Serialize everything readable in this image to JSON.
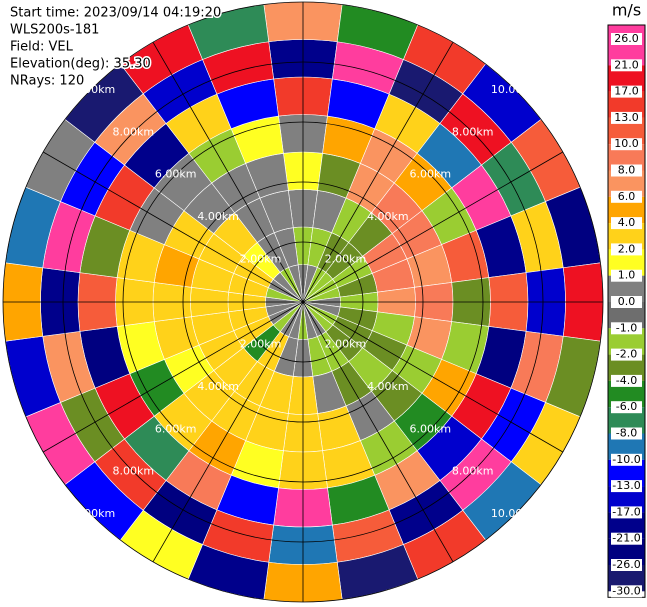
{
  "chart_data": {
    "type": "ppi",
    "annotations": [
      "Start time: 2023/09/14 04:19:20",
      "WLS200s-181",
      "Field: VEL",
      "Elevation(deg): 35.30",
      "NRays: 120"
    ],
    "azimuths": [
      0,
      15,
      30,
      45,
      60,
      75,
      90,
      105,
      120,
      135,
      150,
      165,
      180,
      195,
      210,
      225,
      240,
      255,
      270,
      285,
      300,
      315,
      330,
      345
    ],
    "ranges": [
      0,
      1.25,
      2.5,
      3.75,
      5,
      6.25,
      7.5,
      8.75,
      10
    ],
    "rlim": [
      0,
      10
    ],
    "values": [
      [
        0.5,
        -1.5,
        0.5,
        1.5,
        0.5,
        15,
        -20,
        8
      ],
      [
        0.5,
        -1.5,
        0.5,
        -3,
        5,
        -12,
        22,
        -5
      ],
      [
        -1.5,
        -3,
        -1.5,
        7,
        7,
        3,
        -27,
        14
      ],
      [
        -1.5,
        -3,
        -3,
        9,
        5,
        -9,
        19,
        -15
      ],
      [
        -1.5,
        -1.5,
        9,
        9,
        -1.5,
        25,
        -7,
        11
      ],
      [
        -1.5,
        -3,
        9,
        7,
        11,
        -18,
        4,
        -23
      ],
      [
        0.5,
        -1.5,
        7,
        9,
        -3,
        12,
        -14,
        20
      ],
      [
        0.5,
        -3,
        -1.5,
        7,
        -1.5,
        -25,
        9,
        -2
      ],
      [
        -1.5,
        -3,
        -3,
        -1.5,
        5,
        18,
        -11,
        3
      ],
      [
        -1.5,
        -3,
        -1.5,
        -3,
        -5,
        -16,
        24,
        -8
      ],
      [
        0.5,
        -1.5,
        -3,
        0.5,
        -1.5,
        7,
        -20,
        15
      ],
      [
        0.5,
        -1.5,
        0.5,
        3,
        3,
        -4,
        12,
        -28
      ],
      [
        -1.5,
        0.5,
        3,
        3,
        3,
        22,
        -9,
        6
      ],
      [
        0.5,
        0.5,
        3,
        3,
        1.5,
        -12,
        17,
        -19
      ],
      [
        0.5,
        3,
        3,
        3,
        5,
        9,
        -24,
        2
      ],
      [
        -1.5,
        -5,
        3,
        3,
        3,
        -7,
        14,
        -11
      ],
      [
        0.5,
        3,
        3,
        1.5,
        -5,
        19,
        -2,
        23
      ],
      [
        0.5,
        3,
        3,
        3,
        1.5,
        -22,
        7,
        -14
      ],
      [
        0.5,
        3,
        3,
        3,
        3,
        11,
        -17,
        5
      ],
      [
        -1.5,
        3,
        3,
        5,
        3,
        -3,
        26,
        -9
      ],
      [
        0.5,
        3,
        3,
        3,
        0.5,
        16,
        -12,
        1
      ],
      [
        0.5,
        1.5,
        3,
        0.5,
        0.5,
        -19,
        8,
        -26
      ],
      [
        -1.5,
        0.5,
        0.5,
        0.5,
        -1.5,
        4,
        -15,
        18
      ],
      [
        0.5,
        0.5,
        0.5,
        0.5,
        1.5,
        -10,
        21,
        -6
      ]
    ],
    "rings": [
      {
        "value": 2,
        "label": "2.00km"
      },
      {
        "value": 4,
        "label": "4.00km"
      },
      {
        "value": 6,
        "label": "6.00km"
      },
      {
        "value": 8,
        "label": "8.00km"
      },
      {
        "value": 10,
        "label": "10.00km"
      }
    ],
    "colorbar": {
      "label": "m/s",
      "ticks": [
        {
          "value": 26,
          "label": "26.0"
        },
        {
          "value": 21,
          "label": "21.0"
        },
        {
          "value": 17,
          "label": "17.0"
        },
        {
          "value": 13,
          "label": "13.0"
        },
        {
          "value": 10,
          "label": "10.0"
        },
        {
          "value": 8,
          "label": "8.0"
        },
        {
          "value": 6,
          "label": "6.0"
        },
        {
          "value": 4,
          "label": "4.0"
        },
        {
          "value": 2,
          "label": "2.0"
        },
        {
          "value": 1,
          "label": "1.0"
        },
        {
          "value": 0,
          "label": "0.0"
        },
        {
          "value": -1,
          "label": "-1.0"
        },
        {
          "value": -2,
          "label": "-2.0"
        },
        {
          "value": -4,
          "label": "-4.0"
        },
        {
          "value": -6,
          "label": "-6.0"
        },
        {
          "value": -8,
          "label": "-8.0"
        },
        {
          "value": -10,
          "label": "-10.0"
        },
        {
          "value": -13,
          "label": "-13.0"
        },
        {
          "value": -17,
          "label": "-17.0"
        },
        {
          "value": -21,
          "label": "-21.0"
        },
        {
          "value": -26,
          "label": "-26.0"
        },
        {
          "value": -30,
          "label": "-30.0"
        }
      ],
      "colors": [
        "#ff3d9e",
        "#ee1122",
        "#f23a2a",
        "#f65c3a",
        "#f87a58",
        "#fa9460",
        "#ffa500",
        "#ffd21a",
        "#ffff22",
        "#808080",
        "#6e6e6e",
        "#9acd32",
        "#6b8e23",
        "#228b22",
        "#2e8b57",
        "#1f77b4",
        "#0000ff",
        "#0000cd",
        "#00008b",
        "#000080",
        "#191970"
      ]
    }
  }
}
